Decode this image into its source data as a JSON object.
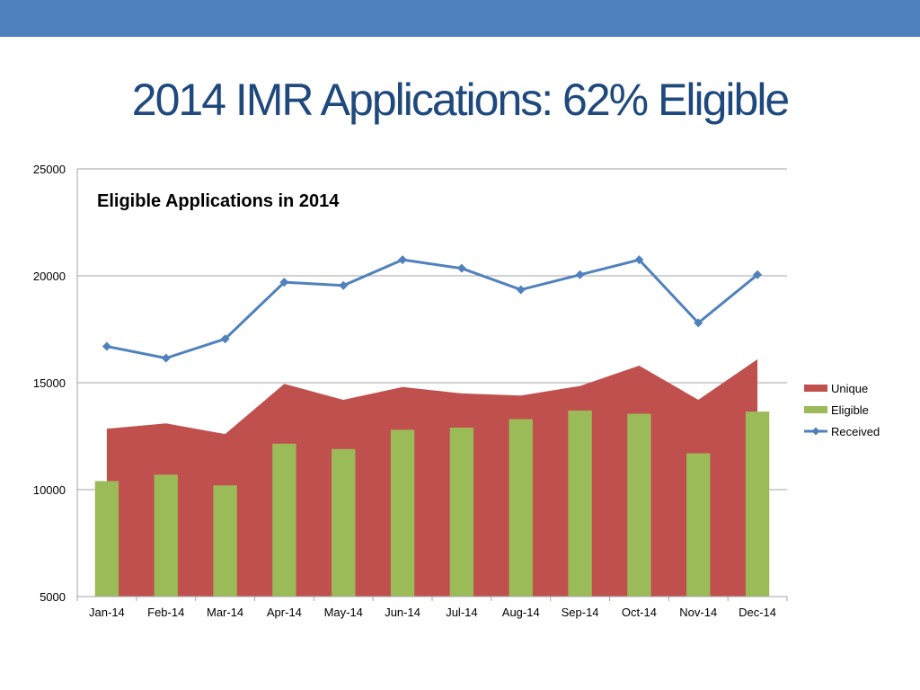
{
  "slide": {
    "title": "2014 IMR Applications: 62% Eligible"
  },
  "colors": {
    "top_bar": "#4f81bd",
    "title_text": "#1f497d",
    "unique": "#c0504d",
    "eligible": "#9bbb59",
    "received": "#4f81bd",
    "gridline": "#a6a6a6"
  },
  "chart_data": {
    "type": "bar",
    "title": "Eligible Applications in 2014",
    "categories": [
      "Jan-14",
      "Feb-14",
      "Mar-14",
      "Apr-14",
      "May-14",
      "Jun-14",
      "Jul-14",
      "Aug-14",
      "Sep-14",
      "Oct-14",
      "Nov-14",
      "Dec-14"
    ],
    "ylim": [
      5000,
      25000
    ],
    "yticks": [
      5000,
      10000,
      15000,
      20000,
      25000
    ],
    "grid": true,
    "legend_position": "right",
    "series": [
      {
        "name": "Unique",
        "type": "area",
        "values": [
          12850,
          13100,
          12600,
          14950,
          14200,
          14800,
          14500,
          14400,
          14850,
          15800,
          14200,
          16100
        ]
      },
      {
        "name": "Eligible",
        "type": "bar",
        "values": [
          10400,
          10700,
          10200,
          12150,
          11900,
          12800,
          12900,
          13300,
          13700,
          13550,
          11700,
          13650
        ]
      },
      {
        "name": "Received",
        "type": "line",
        "values": [
          16700,
          16150,
          17050,
          19700,
          19550,
          20750,
          20350,
          19350,
          20050,
          20750,
          17800,
          20050
        ]
      }
    ]
  }
}
